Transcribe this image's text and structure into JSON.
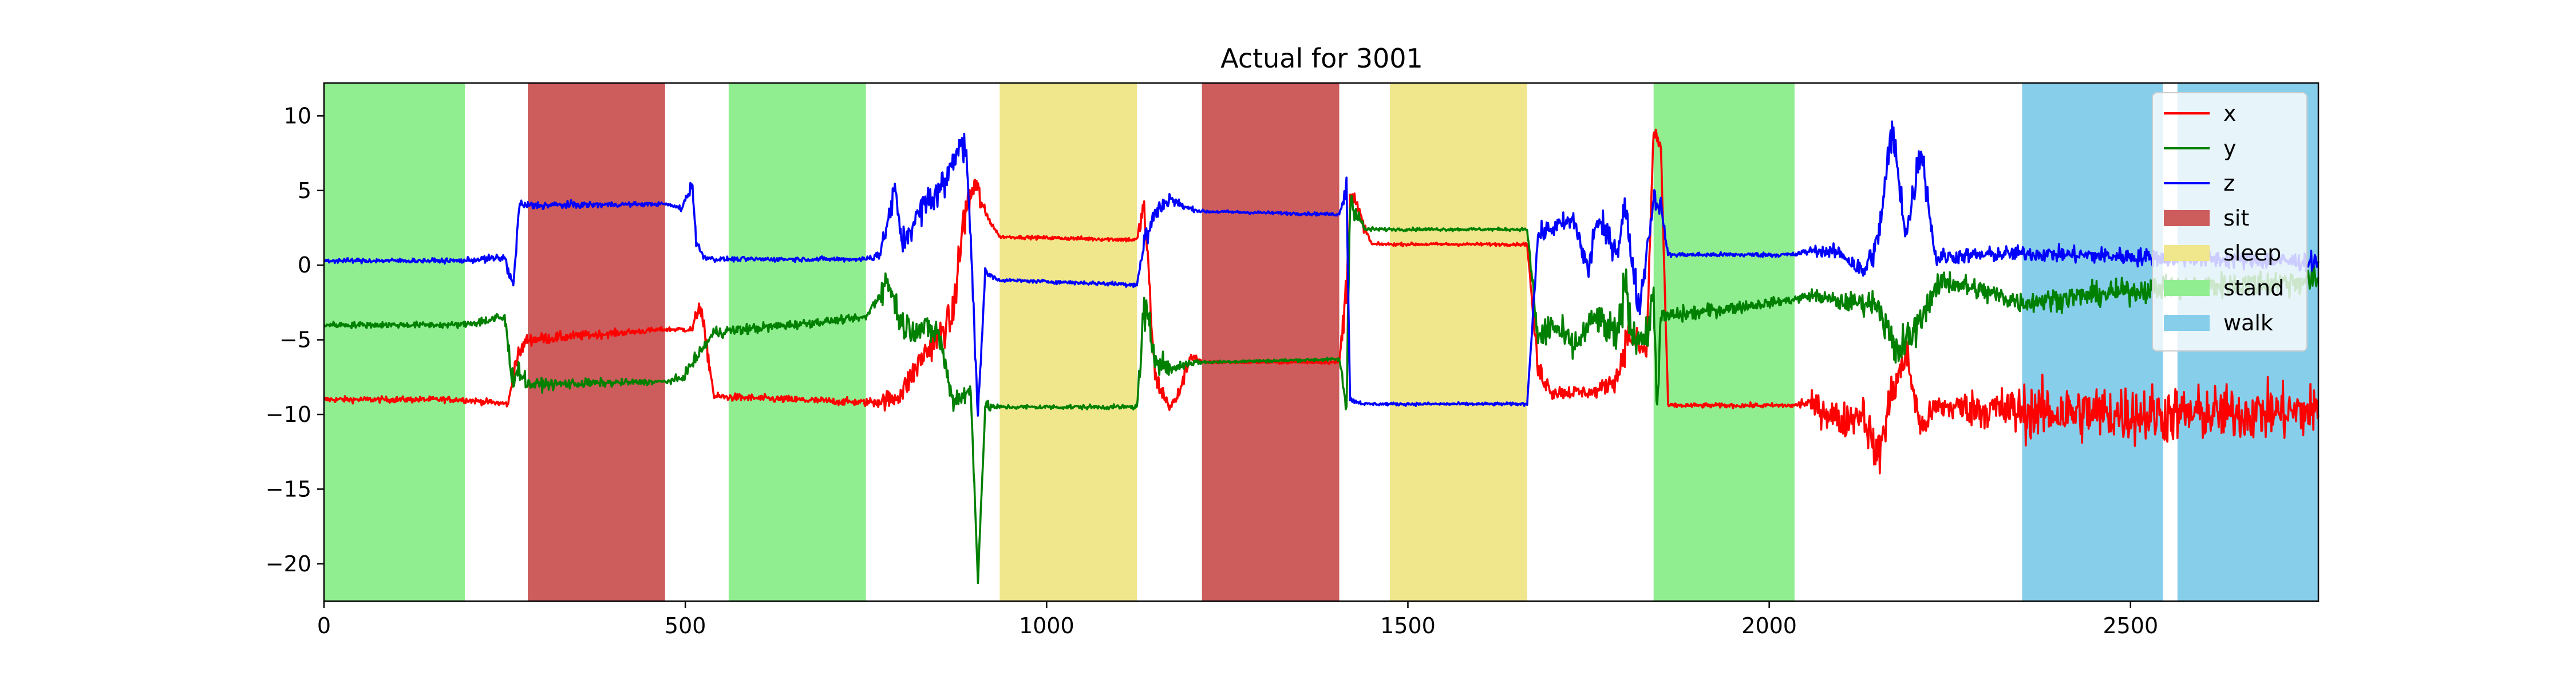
{
  "chart_data": {
    "type": "line",
    "title": "Actual for 3001",
    "xlabel": "",
    "ylabel": "",
    "xlim": [
      0,
      2760
    ],
    "ylim": [
      -22.5,
      12.2
    ],
    "xticks": [
      0,
      500,
      1000,
      1500,
      2000,
      2500
    ],
    "yticks": [
      10,
      5,
      0,
      -5,
      -10,
      -15,
      -20
    ],
    "xtick_labels": [
      "0",
      "500",
      "1000",
      "1500",
      "2000",
      "2500"
    ],
    "ytick_labels": [
      "10",
      "5",
      "0",
      "−5",
      "−10",
      "−15",
      "−20"
    ],
    "grid": false,
    "legend_position": "upper right",
    "activities": [
      {
        "name": "sit",
        "color": "#cd5c5c"
      },
      {
        "name": "sleep",
        "color": "#f0e68c"
      },
      {
        "name": "stand",
        "color": "#90ee90"
      },
      {
        "name": "walk",
        "color": "#87ceeb"
      }
    ],
    "segments": [
      {
        "activity": "stand",
        "start": 0,
        "end": 195
      },
      {
        "activity": "sit",
        "start": 282,
        "end": 472
      },
      {
        "activity": "stand",
        "start": 560,
        "end": 750
      },
      {
        "activity": "sleep",
        "start": 935,
        "end": 1125
      },
      {
        "activity": "sit",
        "start": 1215,
        "end": 1405
      },
      {
        "activity": "sleep",
        "start": 1475,
        "end": 1665
      },
      {
        "activity": "stand",
        "start": 1840,
        "end": 2035
      },
      {
        "activity": "walk",
        "start": 2350,
        "end": 2545
      },
      {
        "activity": "walk",
        "start": 2565,
        "end": 2760
      }
    ],
    "series": [
      {
        "name": "x",
        "color": "#ff0000",
        "x": [
          0,
          190,
          255,
          265,
          280,
          472,
          510,
          520,
          540,
          750,
          785,
          800,
          830,
          870,
          885,
          900,
          915,
          935,
          1125,
          1135,
          1150,
          1170,
          1180,
          1200,
          1215,
          1405,
          1415,
          1420,
          1440,
          1450,
          1470,
          1665,
          1680,
          1700,
          1760,
          1790,
          1805,
          1830,
          1840,
          1850,
          1860,
          2035,
          2050,
          2080,
          2100,
          2130,
          2150,
          2170,
          2190,
          2210,
          2230,
          2260,
          2350,
          2545,
          2565,
          2760
        ],
        "y": [
          -9,
          -9,
          -9.3,
          -6.5,
          -5,
          -4.3,
          -4.3,
          -2.5,
          -8.8,
          -9.2,
          -9.0,
          -8.5,
          -6.0,
          -3.5,
          3.0,
          5.5,
          3.5,
          1.9,
          1.7,
          4.0,
          -7.5,
          -9.5,
          -9.0,
          -6.0,
          -6.5,
          -6.5,
          -1.5,
          5.0,
          2.5,
          1.4,
          1.4,
          1.4,
          -7.0,
          -8.5,
          -8.5,
          -7.5,
          -4.5,
          -6.0,
          9.0,
          8.0,
          -9.4,
          -9.4,
          -9.2,
          -9.8,
          -10.5,
          -9.8,
          -13.0,
          -8.5,
          -6.0,
          -11.0,
          -9.5,
          -9.5,
          -9.8,
          -10.0,
          -10.0,
          -9.8
        ],
        "noise": [
          0.2,
          0.2,
          0.2,
          0.6,
          0.4,
          0.15,
          0.2,
          0.8,
          0.25,
          0.25,
          0.7,
          0.8,
          1.0,
          1.2,
          1.5,
          1.5,
          0.3,
          0.1,
          0.15,
          1.2,
          0.8,
          0.3,
          0.5,
          0.4,
          0.1,
          0.1,
          1.5,
          1.2,
          0.3,
          0.1,
          0.1,
          0.1,
          0.8,
          0.5,
          0.4,
          0.8,
          1.2,
          0.8,
          0.6,
          0.6,
          0.15,
          0.15,
          0.5,
          1.2,
          1.2,
          1.2,
          1.5,
          1.5,
          1.2,
          1.0,
          0.8,
          1.0,
          1.8,
          2.0,
          1.8,
          1.8
        ]
      },
      {
        "name": "y",
        "color": "#008000",
        "x": [
          0,
          190,
          250,
          260,
          270,
          282,
          472,
          495,
          540,
          750,
          780,
          800,
          850,
          870,
          895,
          905,
          915,
          935,
          1125,
          1135,
          1150,
          1170,
          1200,
          1215,
          1405,
          1415,
          1420,
          1440,
          1460,
          1665,
          1680,
          1700,
          1730,
          1760,
          1790,
          1800,
          1810,
          1830,
          1840,
          1845,
          1850,
          2035,
          2060,
          2100,
          2150,
          2175,
          2200,
          2220,
          2240,
          2350,
          2545,
          2565,
          2760
        ],
        "y": [
          -4.0,
          -4.0,
          -3.5,
          -7.5,
          -7.0,
          -8.0,
          -7.8,
          -7.6,
          -4.5,
          -3.5,
          -1.0,
          -4.0,
          -4.5,
          -9.0,
          -8.5,
          -21.0,
          -9.5,
          -9.5,
          -9.5,
          -3.0,
          -6.0,
          -7.0,
          -6.5,
          -6.5,
          -6.3,
          -9.5,
          4.5,
          2.4,
          2.4,
          2.4,
          -5.0,
          -4.0,
          -5.5,
          -3.5,
          -5.0,
          -1.0,
          -4.5,
          -5.0,
          -2.0,
          -9.5,
          -3.5,
          -2.3,
          -2.0,
          -2.5,
          -2.5,
          -6.0,
          -4.5,
          -2.5,
          -1.0,
          -2.5,
          -1.5,
          -1.5,
          -1.0
        ],
        "noise": [
          0.2,
          0.2,
          0.5,
          0.8,
          0.6,
          0.4,
          0.15,
          0.3,
          0.4,
          0.2,
          1.0,
          1.0,
          1.0,
          0.8,
          0.8,
          0.3,
          0.4,
          0.15,
          0.15,
          1.5,
          1.0,
          0.4,
          0.3,
          0.1,
          0.1,
          1.2,
          1.0,
          0.2,
          0.1,
          0.1,
          1.2,
          1.0,
          1.0,
          1.0,
          1.5,
          1.5,
          1.2,
          1.2,
          1.0,
          1.0,
          0.6,
          0.25,
          0.4,
          0.6,
          0.8,
          1.5,
          1.2,
          0.8,
          0.8,
          0.7,
          0.8,
          0.8,
          0.9
        ]
      },
      {
        "name": "z",
        "color": "#0000ff",
        "x": [
          0,
          190,
          250,
          262,
          270,
          282,
          472,
          495,
          510,
          515,
          525,
          540,
          750,
          770,
          790,
          800,
          830,
          860,
          880,
          890,
          905,
          915,
          935,
          1125,
          1135,
          1150,
          1170,
          1190,
          1215,
          1405,
          1415,
          1420,
          1440,
          1450,
          1460,
          1665,
          1680,
          1700,
          1730,
          1750,
          1760,
          1790,
          1800,
          1820,
          1840,
          1850,
          1860,
          2035,
          2060,
          2100,
          2130,
          2150,
          2170,
          2190,
          2210,
          2230,
          2260,
          2350,
          2545,
          2565,
          2760
        ],
        "y": [
          0.3,
          0.3,
          0.5,
          -1.5,
          4.0,
          4.0,
          4.1,
          3.8,
          5.5,
          1.5,
          0.6,
          0.4,
          0.4,
          0.8,
          5.0,
          1.5,
          4.0,
          5.5,
          8.5,
          7.0,
          -10.0,
          -0.5,
          -1.0,
          -1.3,
          1.5,
          3.5,
          4.5,
          3.9,
          3.6,
          3.4,
          5.5,
          -9.0,
          -9.3,
          -9.3,
          -9.3,
          -9.3,
          2.0,
          2.5,
          3.0,
          -0.5,
          3.0,
          1.0,
          4.0,
          -3.0,
          4.5,
          4.0,
          0.7,
          0.7,
          1.0,
          0.8,
          -0.5,
          1.5,
          9.0,
          2.0,
          8.0,
          0.5,
          0.6,
          0.8,
          0.5,
          0.5,
          0.2
        ],
        "noise": [
          0.15,
          0.15,
          0.3,
          0.5,
          0.4,
          0.3,
          0.1,
          0.2,
          0.5,
          0.4,
          0.2,
          0.15,
          0.15,
          0.5,
          1.0,
          0.8,
          1.0,
          1.2,
          1.0,
          1.0,
          0.5,
          0.3,
          0.1,
          0.15,
          1.0,
          0.8,
          0.5,
          0.2,
          0.1,
          0.1,
          1.0,
          0.2,
          0.1,
          0.1,
          0.1,
          0.1,
          0.6,
          0.6,
          0.8,
          1.0,
          1.0,
          0.8,
          1.0,
          1.0,
          0.8,
          0.6,
          0.15,
          0.15,
          0.3,
          0.5,
          0.8,
          1.0,
          1.5,
          1.0,
          1.2,
          0.6,
          0.5,
          0.5,
          0.6,
          0.6,
          0.6
        ]
      }
    ]
  }
}
